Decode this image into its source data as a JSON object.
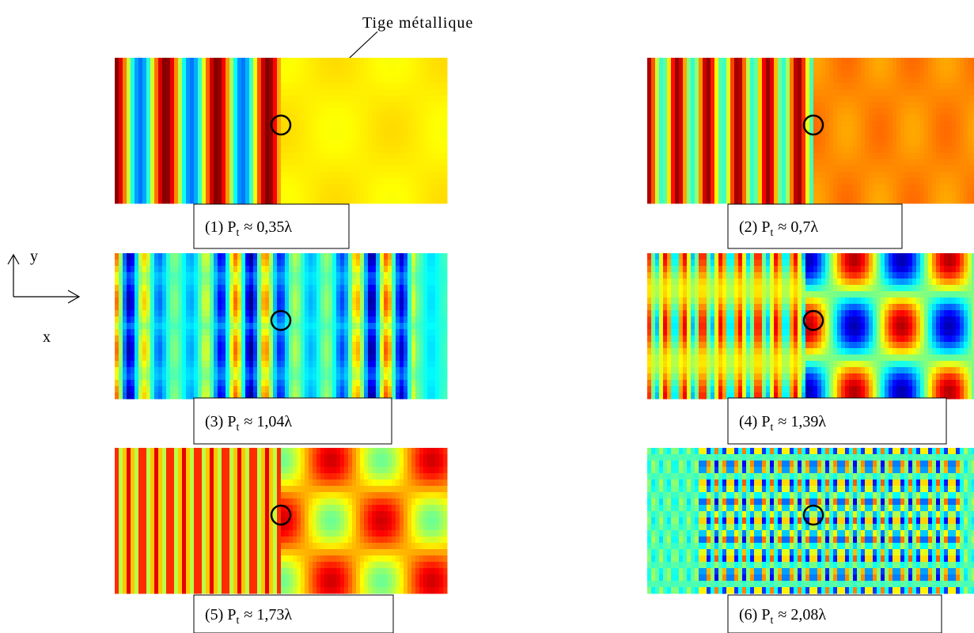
{
  "annotation": "Tige métallique",
  "axes": {
    "y": "y",
    "x": "x"
  },
  "panels": [
    {
      "caption": {
        "prefix": "(1) P",
        "sub": "t",
        "suffix": "≈ 0,35λ"
      }
    },
    {
      "caption": {
        "prefix": "(2) P",
        "sub": "t",
        "suffix": "≈ 0,7λ"
      }
    },
    {
      "caption": {
        "prefix": "(3) P",
        "sub": "t",
        "suffix": "≈ 1,04λ"
      }
    },
    {
      "caption": {
        "prefix": "(4) P",
        "sub": "t",
        "suffix": "≈ 1,39λ"
      }
    },
    {
      "caption": {
        "prefix": "(5) P",
        "sub": "t",
        "suffix": "≈ 1,73λ"
      }
    },
    {
      "caption": {
        "prefix": "(6) P",
        "sub": "t",
        "suffix": "≈ 2,08λ"
      }
    }
  ]
}
